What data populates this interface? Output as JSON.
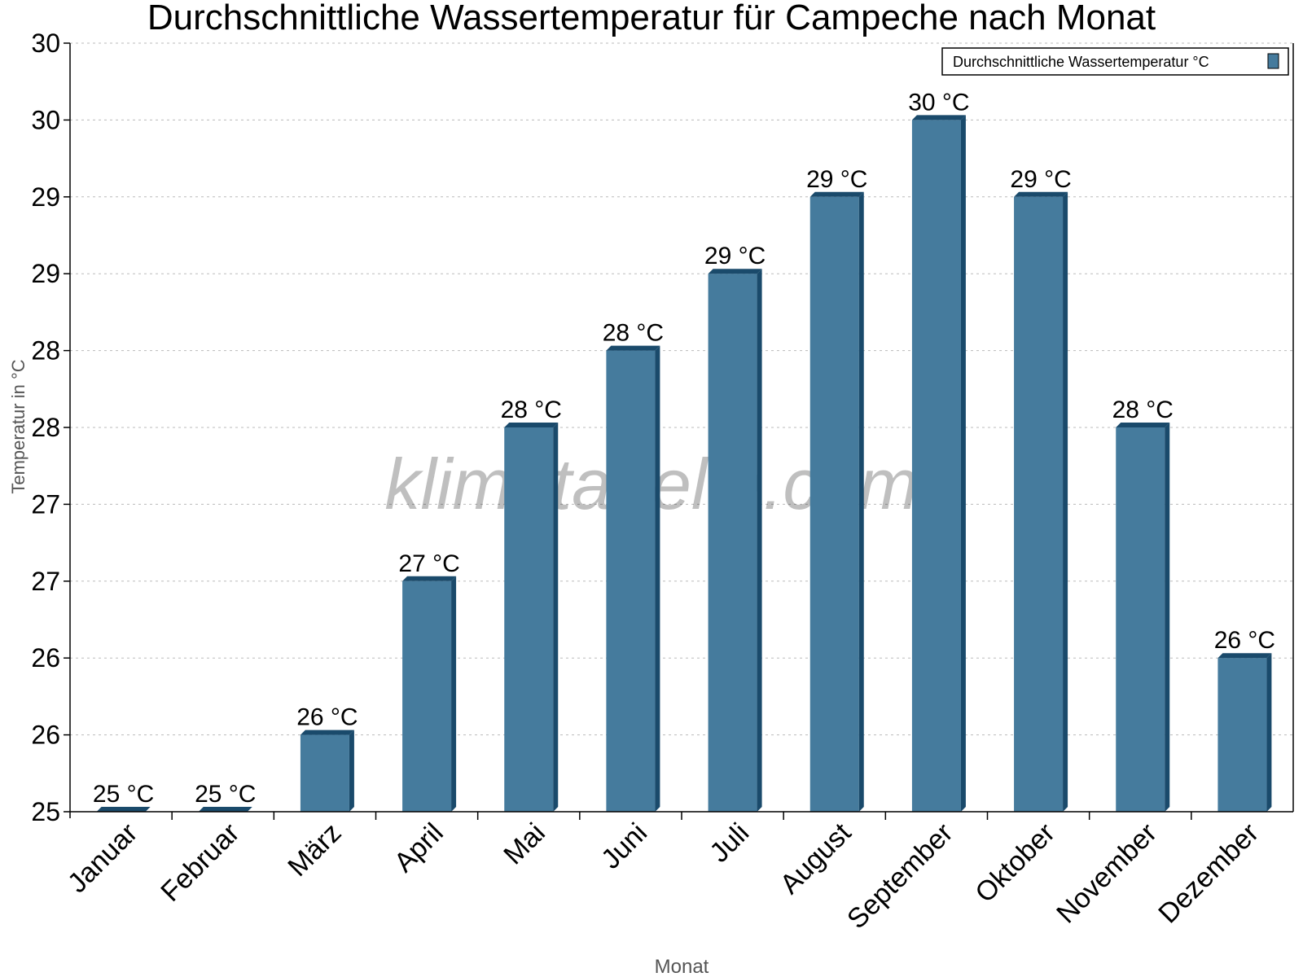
{
  "chart_data": {
    "type": "bar",
    "title": "Durchschnittliche Wassertemperatur für Campeche nach Monat",
    "xlabel": "Monat",
    "ylabel": "Temperatur in °C",
    "ylim": [
      25,
      30
    ],
    "yticks": [
      25,
      25.5,
      26,
      26.5,
      27,
      27.5,
      28,
      28.5,
      29,
      29.5,
      30
    ],
    "ytick_labels": [
      "25",
      "26",
      "26",
      "27",
      "27",
      "28",
      "28",
      "29",
      "29",
      "30",
      "30"
    ],
    "grid": true,
    "legend_position": "top-right",
    "categories": [
      "Januar",
      "Februar",
      "März",
      "April",
      "Mai",
      "Juni",
      "Juli",
      "August",
      "September",
      "Oktober",
      "November",
      "Dezember"
    ],
    "series": [
      {
        "name": "Durchschnittliche Wassertemperatur °C",
        "color": "#457b9d",
        "side_color": "#1a4a6b",
        "values": [
          25.0,
          25.0,
          25.5,
          26.5,
          27.5,
          28.0,
          28.5,
          29.0,
          29.5,
          29.0,
          27.5,
          26.0
        ],
        "data_labels": [
          "25 °C",
          "25 °C",
          "26 °C",
          "27 °C",
          "28 °C",
          "28 °C",
          "29 °C",
          "29 °C",
          "30 °C",
          "29 °C",
          "28 °C",
          "26 °C"
        ]
      }
    ],
    "watermark": "klimatabelle.com"
  }
}
